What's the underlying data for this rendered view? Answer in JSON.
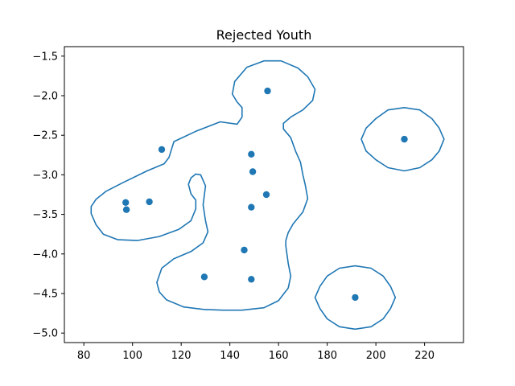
{
  "chart_data": {
    "type": "scatter",
    "title": "Rejected Youth",
    "xlabel": "",
    "ylabel": "",
    "xlim": [
      72,
      236
    ],
    "ylim": [
      -5.12,
      -1.38
    ],
    "xticks": [
      80,
      100,
      120,
      140,
      160,
      180,
      200,
      220
    ],
    "yticks": [
      -1.5,
      -2.0,
      -2.5,
      -3.0,
      -3.5,
      -4.0,
      -4.5,
      -5.0
    ],
    "xtick_labels": [
      "80",
      "100",
      "120",
      "140",
      "160",
      "180",
      "200",
      "220"
    ],
    "ytick_labels": [
      "−1.5",
      "−2.0",
      "−2.5",
      "−3.0",
      "−3.5",
      "−4.0",
      "−4.5",
      "−5.0"
    ],
    "grid": false,
    "color": "#1f77b4",
    "points": [
      {
        "x": 155.5,
        "y": -1.94
      },
      {
        "x": 211.7,
        "y": -2.55
      },
      {
        "x": 112.0,
        "y": -2.68
      },
      {
        "x": 148.8,
        "y": -2.74
      },
      {
        "x": 149.4,
        "y": -2.96
      },
      {
        "x": 155.0,
        "y": -3.25
      },
      {
        "x": 97.2,
        "y": -3.35
      },
      {
        "x": 106.9,
        "y": -3.34
      },
      {
        "x": 97.5,
        "y": -3.44
      },
      {
        "x": 148.8,
        "y": -3.41
      },
      {
        "x": 145.9,
        "y": -3.95
      },
      {
        "x": 129.5,
        "y": -4.29
      },
      {
        "x": 148.8,
        "y": -4.32
      },
      {
        "x": 191.5,
        "y": -4.55
      }
    ],
    "contours": [
      [
        [
          96,
          -3.1
        ],
        [
          106,
          -2.95
        ],
        [
          113,
          -2.86
        ],
        [
          115,
          -2.78
        ],
        [
          117,
          -2.58
        ],
        [
          126,
          -2.45
        ],
        [
          136,
          -2.33
        ],
        [
          143,
          -2.36
        ],
        [
          145,
          -2.27
        ],
        [
          145,
          -2.15
        ],
        [
          143,
          -2.08
        ],
        [
          141,
          -1.98
        ],
        [
          142,
          -1.82
        ],
        [
          147,
          -1.64
        ],
        [
          154,
          -1.56
        ],
        [
          161,
          -1.56
        ],
        [
          168,
          -1.65
        ],
        [
          172,
          -1.76
        ],
        [
          175,
          -1.92
        ],
        [
          174,
          -2.06
        ],
        [
          170,
          -2.18
        ],
        [
          165,
          -2.27
        ],
        [
          162,
          -2.35
        ],
        [
          162,
          -2.42
        ],
        [
          165,
          -2.53
        ],
        [
          167,
          -2.7
        ],
        [
          169,
          -2.84
        ],
        [
          170,
          -3.0
        ],
        [
          171,
          -3.13
        ],
        [
          172,
          -3.3
        ],
        [
          170,
          -3.47
        ],
        [
          166,
          -3.62
        ],
        [
          164,
          -3.73
        ],
        [
          163,
          -3.83
        ],
        [
          163,
          -3.9
        ],
        [
          164,
          -4.12
        ],
        [
          165,
          -4.28
        ],
        [
          164,
          -4.43
        ],
        [
          160,
          -4.59
        ],
        [
          154,
          -4.68
        ],
        [
          145,
          -4.71
        ],
        [
          137,
          -4.71
        ],
        [
          129,
          -4.7
        ],
        [
          121,
          -4.67
        ],
        [
          114,
          -4.58
        ],
        [
          111,
          -4.48
        ],
        [
          110,
          -4.36
        ],
        [
          112,
          -4.18
        ],
        [
          117,
          -4.06
        ],
        [
          124,
          -3.97
        ],
        [
          129,
          -3.86
        ],
        [
          131,
          -3.72
        ],
        [
          130,
          -3.58
        ],
        [
          129,
          -3.38
        ],
        [
          130,
          -3.14
        ],
        [
          128,
          -3.0
        ],
        [
          126,
          -2.99
        ],
        [
          124,
          -3.04
        ],
        [
          123,
          -3.12
        ],
        [
          124,
          -3.24
        ],
        [
          126,
          -3.32
        ],
        [
          126,
          -3.43
        ],
        [
          124,
          -3.58
        ],
        [
          119,
          -3.69
        ],
        [
          111,
          -3.78
        ],
        [
          102,
          -3.83
        ],
        [
          94,
          -3.82
        ],
        [
          88,
          -3.75
        ],
        [
          85,
          -3.63
        ],
        [
          83,
          -3.49
        ],
        [
          83,
          -3.4
        ],
        [
          85,
          -3.31
        ],
        [
          89,
          -3.21
        ],
        [
          96,
          -3.1
        ]
      ],
      [
        [
          211.7,
          -2.15
        ],
        [
          218,
          -2.18
        ],
        [
          223,
          -2.29
        ],
        [
          226,
          -2.41
        ],
        [
          228,
          -2.55
        ],
        [
          226,
          -2.7
        ],
        [
          223,
          -2.81
        ],
        [
          218,
          -2.91
        ],
        [
          211.7,
          -2.95
        ],
        [
          205,
          -2.91
        ],
        [
          200,
          -2.81
        ],
        [
          196,
          -2.7
        ],
        [
          194,
          -2.55
        ],
        [
          196,
          -2.41
        ],
        [
          200,
          -2.29
        ],
        [
          205,
          -2.18
        ],
        [
          211.7,
          -2.15
        ]
      ],
      [
        [
          191.5,
          -4.15
        ],
        [
          198,
          -4.18
        ],
        [
          203,
          -4.28
        ],
        [
          206,
          -4.41
        ],
        [
          208,
          -4.55
        ],
        [
          206,
          -4.69
        ],
        [
          203,
          -4.82
        ],
        [
          198,
          -4.92
        ],
        [
          191.5,
          -4.95
        ],
        [
          185,
          -4.92
        ],
        [
          180,
          -4.82
        ],
        [
          177,
          -4.69
        ],
        [
          175,
          -4.55
        ],
        [
          177,
          -4.41
        ],
        [
          180,
          -4.28
        ],
        [
          185,
          -4.18
        ],
        [
          191.5,
          -4.15
        ]
      ]
    ]
  }
}
